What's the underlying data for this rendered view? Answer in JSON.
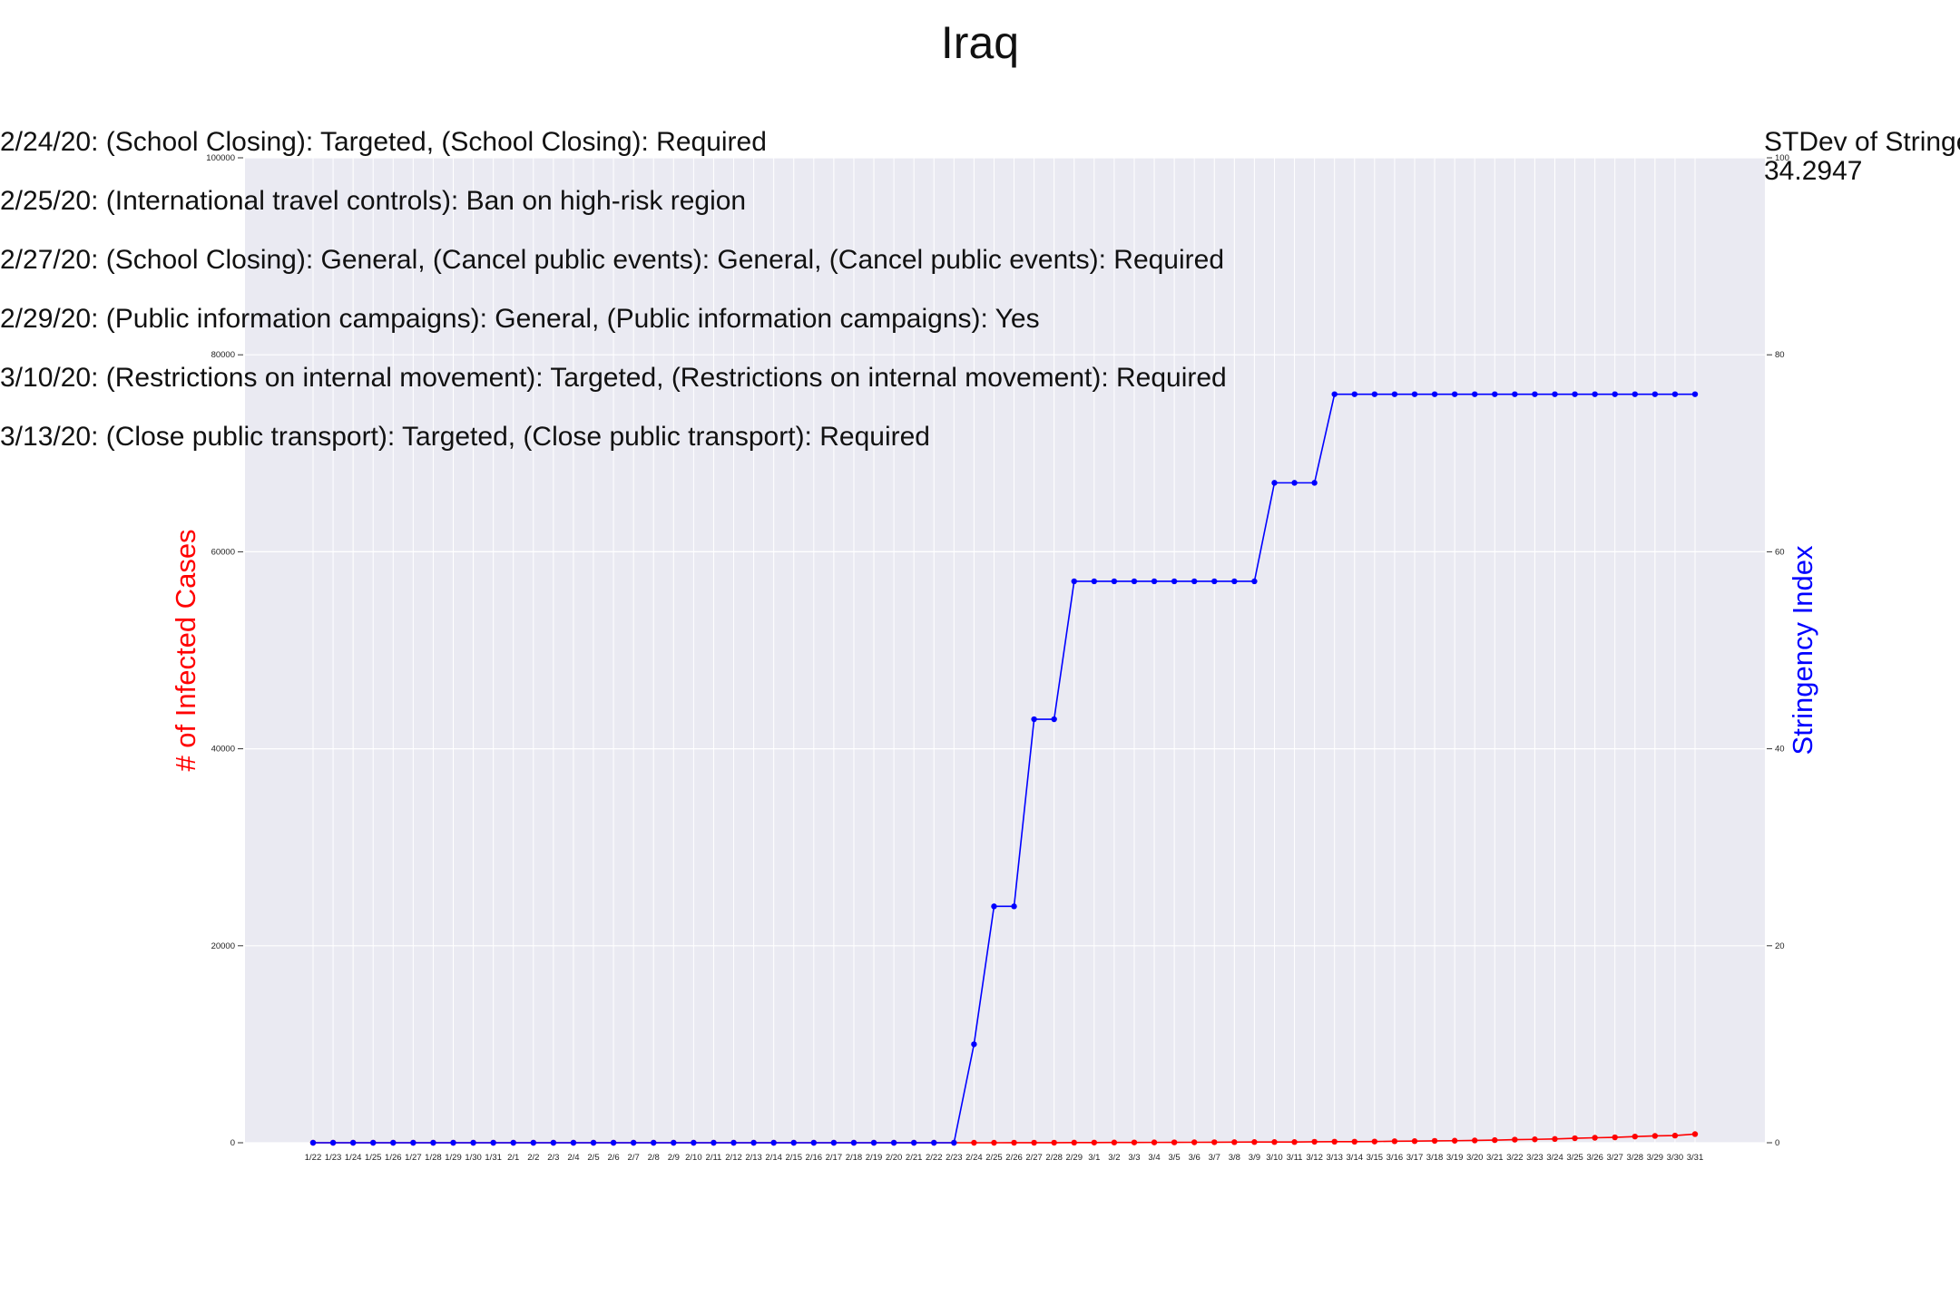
{
  "chart_data": {
    "type": "line",
    "title": "Iraq",
    "ylabel_left": "# of Infected Cases",
    "ylabel_right": "Stringency Index",
    "ylim_left": [
      0,
      100000
    ],
    "ylim_right": [
      0,
      100
    ],
    "yticks_left": [
      "0",
      "20000",
      "40000",
      "60000",
      "80000",
      "100000"
    ],
    "yticks_right": [
      "0",
      "20",
      "40",
      "60",
      "80",
      "100"
    ],
    "grid": true,
    "x": [
      "1/22",
      "1/23",
      "1/24",
      "1/25",
      "1/26",
      "1/27",
      "1/28",
      "1/29",
      "1/30",
      "1/31",
      "2/1",
      "2/2",
      "2/3",
      "2/4",
      "2/5",
      "2/6",
      "2/7",
      "2/8",
      "2/9",
      "2/10",
      "2/11",
      "2/12",
      "2/13",
      "2/14",
      "2/15",
      "2/16",
      "2/17",
      "2/18",
      "2/19",
      "2/20",
      "2/21",
      "2/22",
      "2/23",
      "2/24",
      "2/25",
      "2/26",
      "2/27",
      "2/28",
      "2/29",
      "3/1",
      "3/2",
      "3/3",
      "3/4",
      "3/5",
      "3/6",
      "3/7",
      "3/8",
      "3/9",
      "3/10",
      "3/11",
      "3/12",
      "3/13",
      "3/14",
      "3/15",
      "3/16",
      "3/17",
      "3/18",
      "3/19",
      "3/20",
      "3/21",
      "3/22",
      "3/23",
      "3/24",
      "3/25",
      "3/26",
      "3/27",
      "3/28",
      "3/29",
      "3/30",
      "3/31"
    ],
    "series": [
      {
        "axis": "left",
        "color": "#ff0000",
        "values": [
          0,
          0,
          0,
          0,
          0,
          0,
          0,
          0,
          0,
          0,
          0,
          0,
          0,
          0,
          0,
          0,
          0,
          0,
          0,
          0,
          0,
          0,
          0,
          0,
          0,
          0,
          0,
          0,
          0,
          0,
          0,
          0,
          0,
          1,
          1,
          5,
          6,
          7,
          13,
          19,
          26,
          32,
          35,
          40,
          46,
          54,
          60,
          71,
          71,
          71,
          101,
          110,
          110,
          124,
          154,
          164,
          192,
          208,
          233,
          266,
          316,
          346,
          382,
          458,
          506,
          547,
          630,
          694,
          728,
          878
        ]
      },
      {
        "axis": "right",
        "color": "#0000ff",
        "values": [
          0,
          0,
          0,
          0,
          0,
          0,
          0,
          0,
          0,
          0,
          0,
          0,
          0,
          0,
          0,
          0,
          0,
          0,
          0,
          0,
          0,
          0,
          0,
          0,
          0,
          0,
          0,
          0,
          0,
          0,
          0,
          0,
          0,
          10,
          24,
          24,
          43,
          43,
          57,
          57,
          57,
          57,
          57,
          57,
          57,
          57,
          57,
          57,
          67,
          67,
          67,
          76,
          76,
          76,
          76,
          76,
          76,
          76,
          76,
          76,
          76,
          76,
          76,
          76,
          76,
          76,
          76,
          76,
          76,
          76
        ]
      }
    ],
    "annotations": [
      "2/24/20: (School Closing): Targeted, (School Closing): Required",
      "2/25/20: (International travel controls): Ban on high-risk region",
      "2/27/20: (School Closing): General, (Cancel public events): General, (Cancel public events): Required",
      "2/29/20: (Public information campaigns): General, (Public information campaigns): Yes",
      "3/10/20: (Restrictions on internal movement): Targeted, (Restrictions on internal movement): Required",
      "3/13/20: (Close public transport): Targeted, (Close public transport): Required"
    ],
    "stdev_label": "STDev of Stringency Index",
    "stdev_value": "34.2947"
  }
}
